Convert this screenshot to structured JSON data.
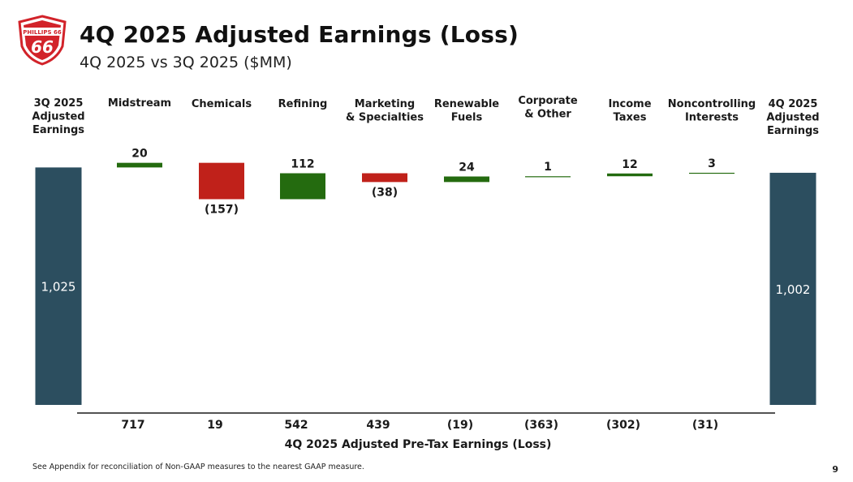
{
  "header": {
    "title": "4Q 2025 Adjusted Earnings (Loss)",
    "subtitle": "4Q 2025 vs 3Q 2025 ($MM)",
    "logo_text": "PHILLIPS 66"
  },
  "colors": {
    "total": "#2c4e5f",
    "increase": "#246b0f",
    "decrease": "#c0211a",
    "logo_red": "#d2232a"
  },
  "chart_data": {
    "type": "waterfall",
    "title": "4Q 2025 Adjusted Earnings (Loss)",
    "subtitle": "4Q 2025 vs 3Q 2025 ($MM)",
    "categories": [
      [
        "3Q 2025",
        "Adjusted",
        "Earnings"
      ],
      [
        "Midstream"
      ],
      [
        "Chemicals"
      ],
      [
        "Refining"
      ],
      [
        "Marketing",
        "& Specialties"
      ],
      [
        "Renewable",
        "Fuels"
      ],
      [
        "Corporate",
        "& Other"
      ],
      [
        "Income",
        "Taxes"
      ],
      [
        "Noncontrolling",
        "Interests"
      ],
      [
        "4Q 2025",
        "Adjusted",
        "Earnings"
      ]
    ],
    "values": [
      1025,
      20,
      -157,
      112,
      -38,
      24,
      1,
      12,
      3,
      1002
    ],
    "kinds": [
      "total",
      "delta",
      "delta",
      "delta",
      "delta",
      "delta",
      "delta",
      "delta",
      "delta",
      "total"
    ],
    "labels": [
      "1,025",
      "20",
      "(157)",
      "112",
      "(38)",
      "24",
      "1",
      "12",
      "3",
      "1,002"
    ],
    "pretax_row": {
      "title": "4Q 2025 Adjusted Pre-Tax Earnings (Loss)",
      "values": [
        "717",
        "19",
        "542",
        "439",
        "(19)",
        "(363)",
        "(302)",
        "(31)"
      ]
    }
  },
  "footer": {
    "note": "See Appendix for reconciliation of Non-GAAP measures to the nearest GAAP measure.",
    "page": "9"
  }
}
